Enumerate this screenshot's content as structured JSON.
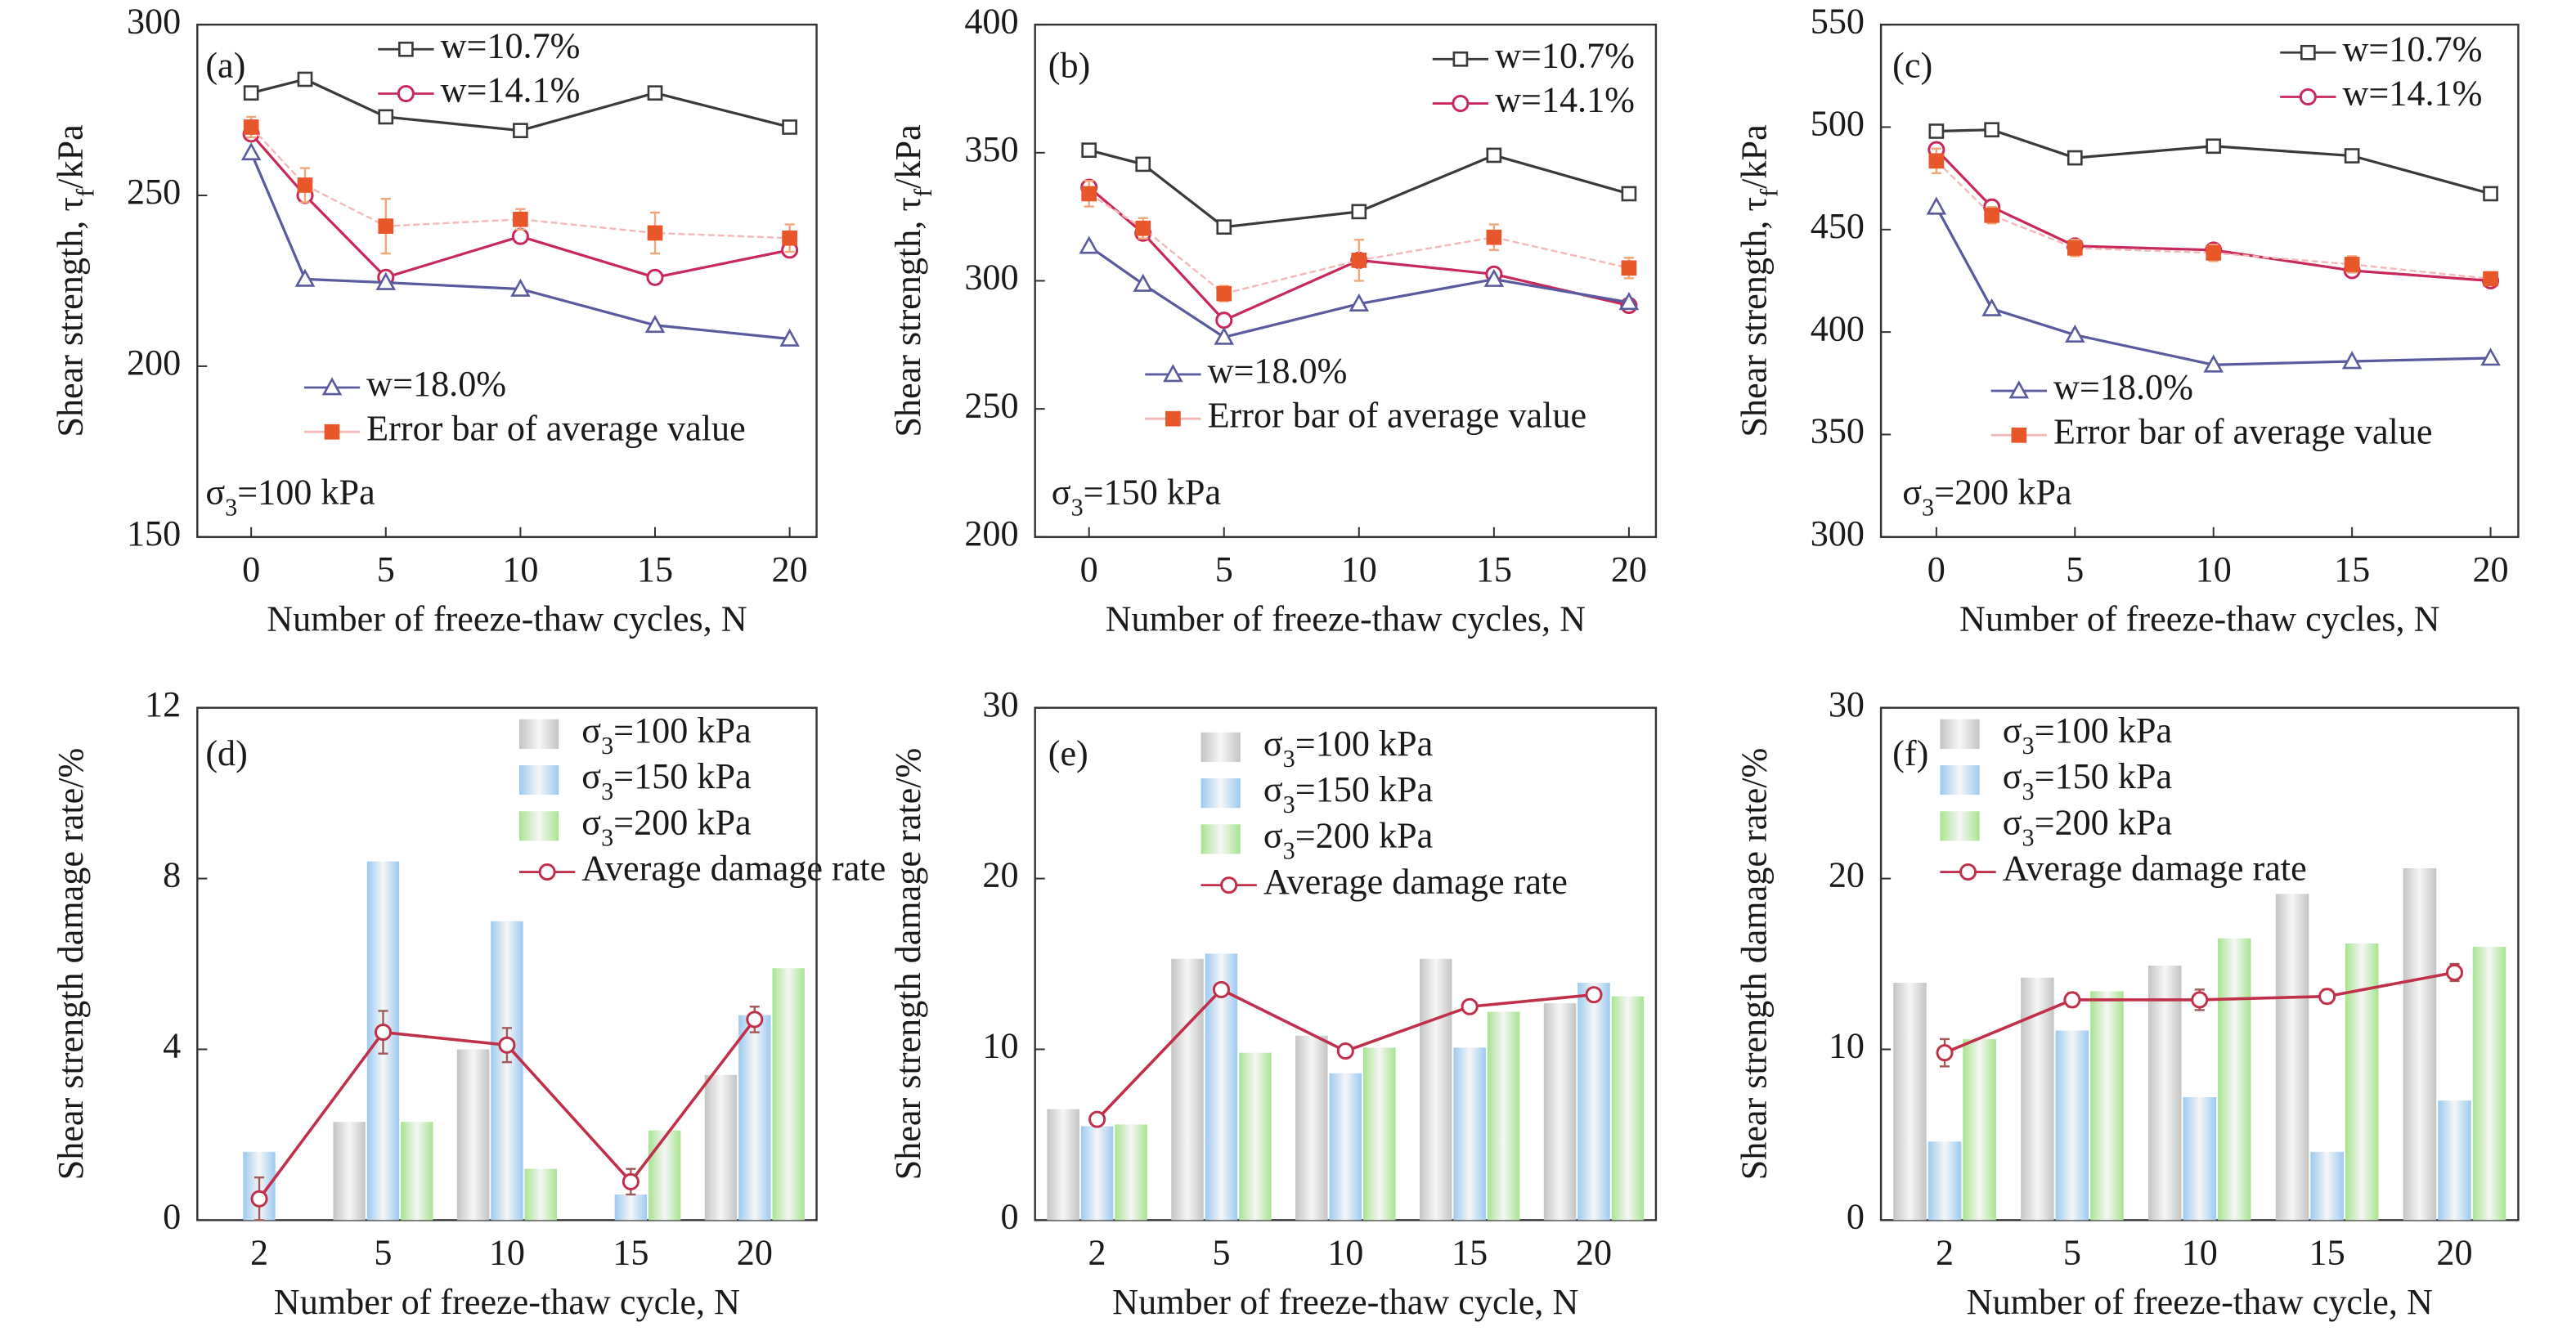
{
  "chart_data": [
    {
      "type": "line",
      "panel": "(a)",
      "ylabel": [
        "Shear strength, τ",
        {
          "sub": "f"
        },
        "/kPa"
      ],
      "xlabel": "Number of freeze-thaw cycles, N",
      "annotation": [
        "σ",
        {
          "sub": "3"
        },
        "=100 kPa"
      ],
      "x": [
        0,
        2,
        5,
        10,
        15,
        20
      ],
      "xlim": [
        -2,
        21
      ],
      "xticks": [
        0,
        5,
        10,
        15,
        20
      ],
      "ylim": [
        150,
        300
      ],
      "yticks": [
        150,
        200,
        250,
        300
      ],
      "series": [
        {
          "name": "w=10.7%",
          "color": "#3a3a3a",
          "marker": "square",
          "values": [
            280,
            284,
            273,
            269,
            280,
            270
          ]
        },
        {
          "name": "w=14.1%",
          "color": "#c8285a",
          "marker": "circle",
          "values": [
            268,
            250,
            226,
            238,
            226,
            234
          ]
        },
        {
          "name": "w=18.0%",
          "color": "#5a5a9e",
          "marker": "triangle",
          "values": [
            262.5,
            225.5,
            224.5,
            222.6,
            212,
            208
          ]
        },
        {
          "name": "Error bar of average value",
          "color": "#e8572a",
          "line_color": "#f4b8b8",
          "error_color": "#f2a77a",
          "marker": "filled-square",
          "values": [
            270,
            253,
            241,
            243,
            239,
            237.5
          ],
          "errors": [
            3,
            5,
            8,
            3,
            6,
            4
          ]
        }
      ]
    },
    {
      "type": "line",
      "panel": "(b)",
      "ylabel": [
        "Shear strength, τ",
        {
          "sub": "f"
        },
        "/kPa"
      ],
      "xlabel": "Number of freeze-thaw cycles, N",
      "annotation": [
        "σ",
        {
          "sub": "3"
        },
        "=150 kPa"
      ],
      "x": [
        0,
        2,
        5,
        10,
        15,
        20
      ],
      "xlim": [
        -2,
        21
      ],
      "xticks": [
        0,
        5,
        10,
        15,
        20
      ],
      "ylim": [
        200,
        400
      ],
      "yticks": [
        200,
        250,
        300,
        350,
        400
      ],
      "series": [
        {
          "name": "w=10.7%",
          "color": "#3a3a3a",
          "marker": "square",
          "values": [
            351,
            345.5,
            321,
            327,
            349,
            334
          ]
        },
        {
          "name": "w=14.1%",
          "color": "#c8285a",
          "marker": "circle",
          "values": [
            336.5,
            318.6,
            284.6,
            308,
            302.6,
            290.4
          ]
        },
        {
          "name": "w=18.0%",
          "color": "#5a5a9e",
          "marker": "triangle",
          "values": [
            313.5,
            298.7,
            278,
            291,
            300.6,
            291.6
          ]
        },
        {
          "name": "Error bar of average value",
          "color": "#e8572a",
          "line_color": "#f4b8b8",
          "error_color": "#f2a77a",
          "marker": "filled-square",
          "values": [
            334,
            320.5,
            295,
            308,
            317,
            305
          ],
          "errors": [
            5,
            4,
            3,
            8,
            5,
            4
          ]
        }
      ]
    },
    {
      "type": "line",
      "panel": "(c)",
      "ylabel": [
        "Shear strength, τ",
        {
          "sub": "f"
        },
        "/kPa"
      ],
      "xlabel": "Number of freeze-thaw cycles, N",
      "annotation": [
        "σ",
        {
          "sub": "3"
        },
        "=200 kPa"
      ],
      "x": [
        0,
        2,
        5,
        10,
        15,
        20
      ],
      "xlim": [
        -2,
        21
      ],
      "xticks": [
        0,
        5,
        10,
        15,
        20
      ],
      "ylim": [
        300,
        550
      ],
      "yticks": [
        300,
        350,
        400,
        450,
        500,
        550
      ],
      "series": [
        {
          "name": "w=10.7%",
          "color": "#3a3a3a",
          "marker": "square",
          "values": [
            498,
            498.7,
            485,
            490.7,
            486,
            467.5
          ]
        },
        {
          "name": "w=14.1%",
          "color": "#c8285a",
          "marker": "circle",
          "values": [
            489,
            461,
            442,
            440,
            430,
            425
          ]
        },
        {
          "name": "w=18.0%",
          "color": "#5a5a9e",
          "marker": "triangle",
          "values": [
            461,
            411.4,
            398.6,
            384,
            385.7,
            387.3
          ]
        },
        {
          "name": "Error bar of average value",
          "color": "#e8572a",
          "line_color": "#f4b8b8",
          "error_color": "#f2a77a",
          "marker": "filled-square",
          "values": [
            483.5,
            457,
            441,
            438.6,
            433,
            426
          ],
          "errors": [
            6,
            4,
            4,
            4,
            4,
            3
          ]
        }
      ]
    },
    {
      "type": "bar",
      "panel": "(d)",
      "ylabel": "Shear strength damage rate/%",
      "xlabel": "Number of freeze-thaw cycle, N",
      "categories": [
        "2",
        "5",
        "10",
        "15",
        "20"
      ],
      "ylim": [
        0,
        12
      ],
      "yticks": [
        0,
        4,
        8,
        12
      ],
      "series": [
        {
          "name": [
            "σ",
            {
              "sub": "3"
            },
            "=100 kPa"
          ],
          "color": "#c4c4c4",
          "values": [
            0,
            2.3,
            4.0,
            0,
            3.4
          ]
        },
        {
          "name": [
            "σ",
            {
              "sub": "3"
            },
            "=150 kPa"
          ],
          "color": "#9ccaf0",
          "values": [
            1.6,
            8.4,
            7.0,
            0.6,
            4.8
          ]
        },
        {
          "name": [
            "σ",
            {
              "sub": "3"
            },
            "=200 kPa"
          ],
          "color": "#a8e490",
          "values": [
            0,
            2.3,
            1.2,
            2.1,
            5.9
          ]
        },
        {
          "name": "Average damage rate",
          "type": "line",
          "color": "#c0304a",
          "values": [
            0.5,
            4.4,
            4.1,
            0.9,
            4.7
          ],
          "errors": [
            0.5,
            0.5,
            0.4,
            0.3,
            0.3
          ]
        }
      ]
    },
    {
      "type": "bar",
      "panel": "(e)",
      "ylabel": "Shear strength damage rate/%",
      "xlabel": "Number of freeze-thaw cycle, N",
      "categories": [
        "2",
        "5",
        "10",
        "15",
        "20"
      ],
      "ylim": [
        0,
        30
      ],
      "yticks": [
        0,
        10,
        20,
        30
      ],
      "series": [
        {
          "name": [
            "σ",
            {
              "sub": "3"
            },
            "=100 kPa"
          ],
          "color": "#c4c4c4",
          "values": [
            6.5,
            15.3,
            10.8,
            15.3,
            12.7
          ]
        },
        {
          "name": [
            "σ",
            {
              "sub": "3"
            },
            "=150 kPa"
          ],
          "color": "#9ccaf0",
          "values": [
            5.5,
            15.6,
            8.6,
            10.1,
            13.9
          ]
        },
        {
          "name": [
            "σ",
            {
              "sub": "3"
            },
            "=200 kPa"
          ],
          "color": "#a8e490",
          "values": [
            5.6,
            9.8,
            10.1,
            12.2,
            13.1
          ]
        },
        {
          "name": "Average damage rate",
          "type": "line",
          "color": "#c0304a",
          "values": [
            5.9,
            13.5,
            9.9,
            12.5,
            13.2
          ],
          "errors": [
            0.3,
            0.3,
            0.3,
            0.3,
            0.3
          ]
        }
      ]
    },
    {
      "type": "bar",
      "panel": "(f)",
      "ylabel": "Shear strength damage rate/%",
      "xlabel": "Number of freeze-thaw cycle, N",
      "categories": [
        "2",
        "5",
        "10",
        "15",
        "20"
      ],
      "ylim": [
        0,
        30
      ],
      "yticks": [
        0,
        10,
        20,
        30
      ],
      "series": [
        {
          "name": [
            "σ",
            {
              "sub": "3"
            },
            "=100 kPa"
          ],
          "color": "#c4c4c4",
          "values": [
            13.9,
            14.2,
            14.9,
            19.1,
            20.6
          ]
        },
        {
          "name": [
            "σ",
            {
              "sub": "3"
            },
            "=150 kPa"
          ],
          "color": "#9ccaf0",
          "values": [
            4.6,
            11.1,
            7.2,
            4.0,
            7.0
          ]
        },
        {
          "name": [
            "σ",
            {
              "sub": "3"
            },
            "=200 kPa"
          ],
          "color": "#a8e490",
          "values": [
            10.6,
            13.4,
            16.5,
            16.2,
            16.0
          ]
        },
        {
          "name": "Average damage rate",
          "type": "line",
          "color": "#c0304a",
          "values": [
            9.8,
            12.9,
            12.9,
            13.1,
            14.5
          ],
          "errors": [
            0.8,
            0.4,
            0.6,
            0.4,
            0.5
          ]
        }
      ]
    }
  ]
}
